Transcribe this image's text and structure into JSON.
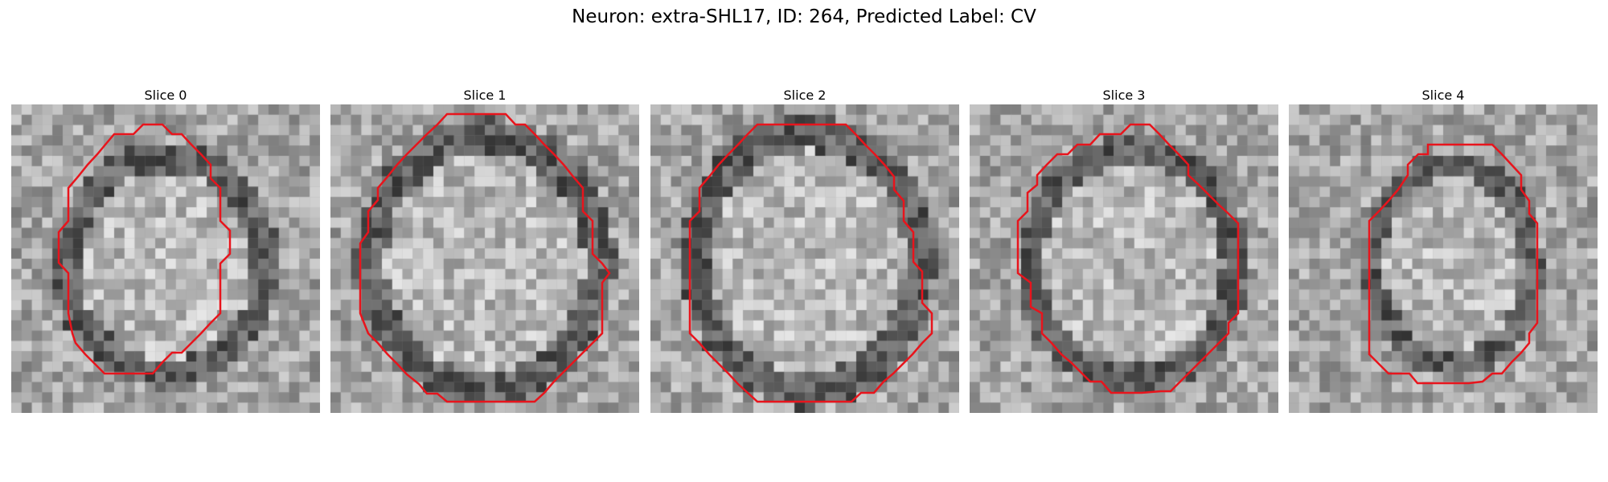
{
  "figure": {
    "title": "Neuron: extra-SHL17, ID: 264, Predicted Label: CV"
  },
  "colors": {
    "contour": "#e8141c"
  },
  "panels": [
    {
      "label": "Slice 0"
    },
    {
      "label": "Slice 1"
    },
    {
      "label": "Slice 2"
    },
    {
      "label": "Slice 3"
    },
    {
      "label": "Slice 4"
    }
  ]
}
